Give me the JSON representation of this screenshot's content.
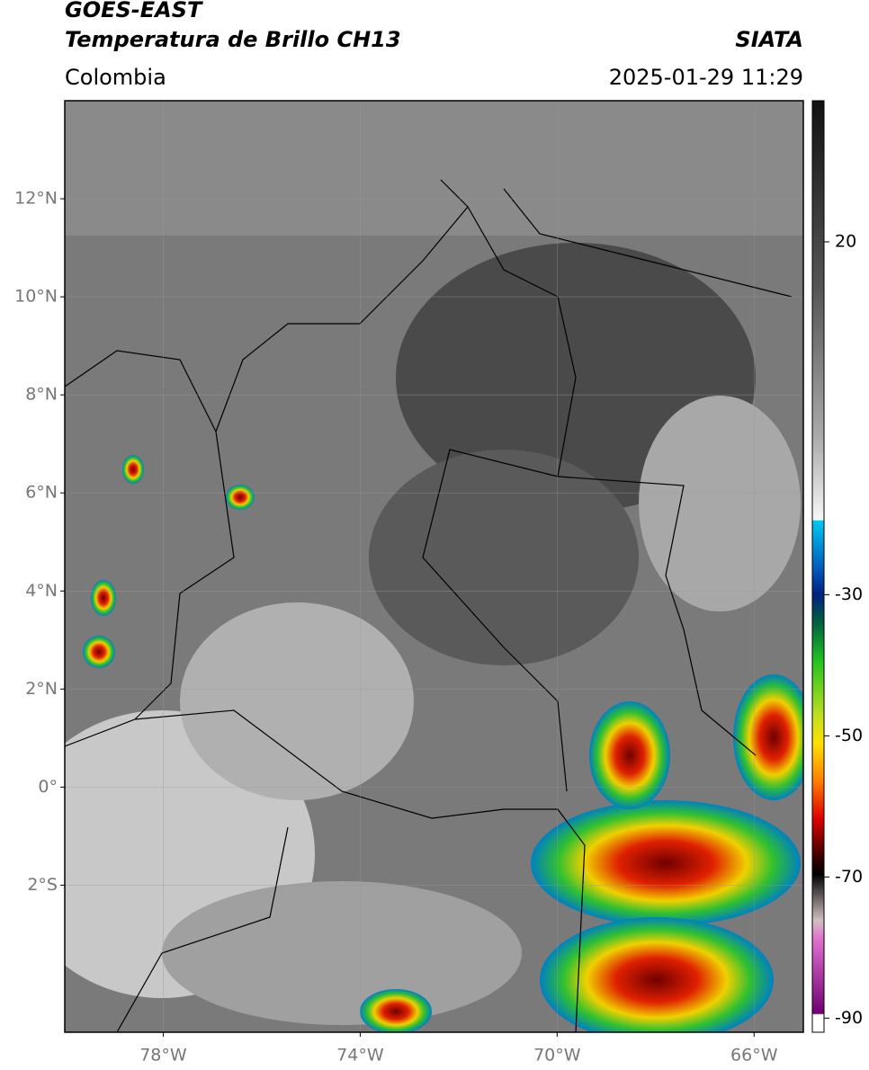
{
  "header": {
    "title": "GOES-EAST",
    "subtitle": "Temperatura de Brillo CH13",
    "agency": "SIATA",
    "region": "Colombia",
    "timestamp": "2025-01-29 11:29"
  },
  "map": {
    "xlim": [
      -80,
      -65
    ],
    "ylim": [
      -5,
      14
    ],
    "xticks": [
      {
        "value": -78,
        "label": "78°W"
      },
      {
        "value": -74,
        "label": "74°W"
      },
      {
        "value": -70,
        "label": "70°W"
      },
      {
        "value": -66,
        "label": "66°W"
      }
    ],
    "yticks": [
      {
        "value": 12,
        "label": "12°N"
      },
      {
        "value": 10,
        "label": "10°N"
      },
      {
        "value": 8,
        "label": "8°N"
      },
      {
        "value": 6,
        "label": "6°N"
      },
      {
        "value": 4,
        "label": "4°N"
      },
      {
        "value": 2,
        "label": "2°N"
      },
      {
        "value": 0,
        "label": "0°"
      },
      {
        "value": -2,
        "label": "2°S"
      }
    ]
  },
  "colorbar": {
    "lim": [
      -92,
      40
    ],
    "ticks": [
      20,
      -30,
      -50,
      -70,
      -90
    ]
  }
}
